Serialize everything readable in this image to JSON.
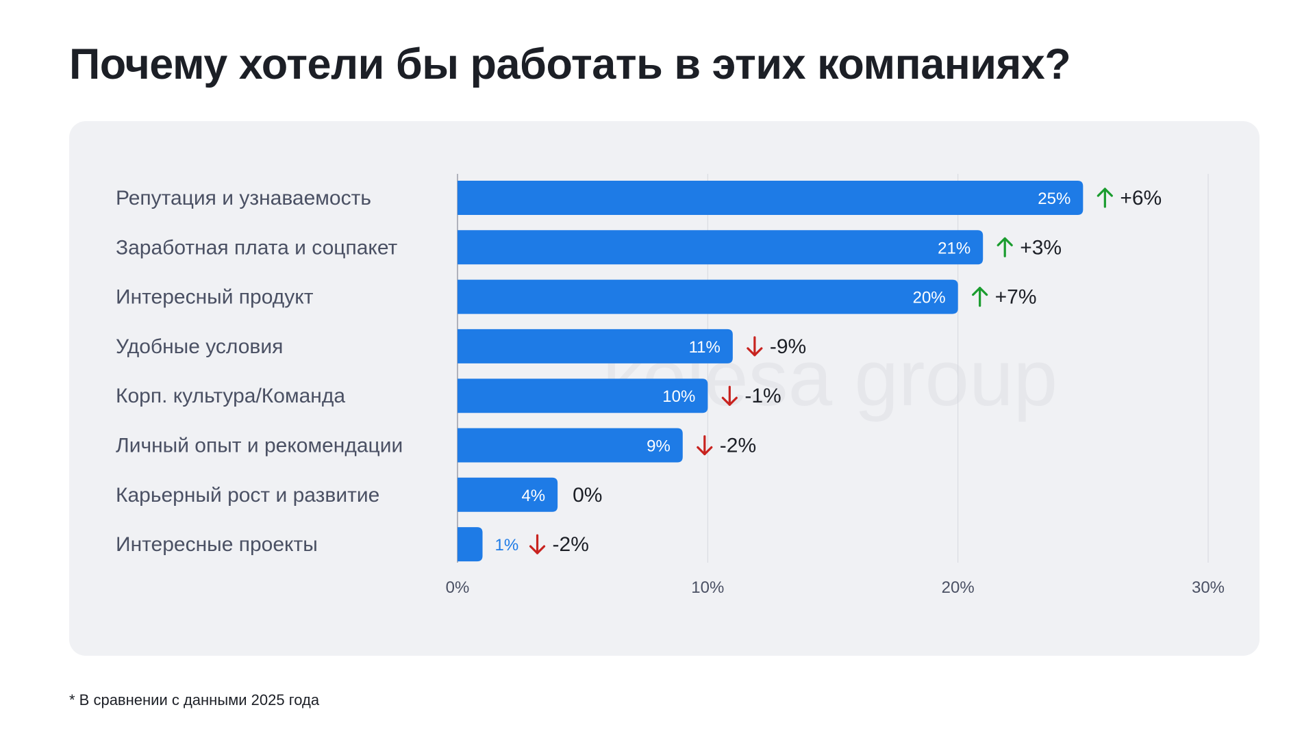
{
  "title": "Почему хотели бы работать в этих компаниях?",
  "footnote": "* В сравнении с данными 2025 года",
  "watermark": "kolesa group",
  "colors": {
    "bar": "#1e7be6",
    "up": "#1a9c2e",
    "down": "#c8231f",
    "label": "#4a5063",
    "grid": "#d6d8de",
    "tick": "#4a5063"
  },
  "chart_data": {
    "type": "bar",
    "orientation": "horizontal",
    "title": "Почему хотели бы работать в этих компаниях?",
    "xlabel": "",
    "ylabel": "",
    "xlim": [
      0,
      30
    ],
    "xticks": [
      0,
      10,
      20,
      30
    ],
    "xtick_labels": [
      "0%",
      "10%",
      "20%",
      "30%"
    ],
    "grid": true,
    "categories": [
      "Репутация и узнаваемость",
      "Заработная плата и соцпакет",
      "Интересный продукт",
      "Удобные условия",
      "Корп. культура/Команда",
      "Личный опыт и рекомендации",
      "Карьерный рост и развитие",
      "Интересные проекты"
    ],
    "values": [
      25,
      21,
      20,
      11,
      10,
      9,
      4,
      1
    ],
    "value_labels": [
      "25%",
      "21%",
      "20%",
      "11%",
      "10%",
      "9%",
      "4%",
      "1%"
    ],
    "changes": [
      {
        "label": "+6%",
        "direction": "up"
      },
      {
        "label": "+3%",
        "direction": "up"
      },
      {
        "label": "+7%",
        "direction": "up"
      },
      {
        "label": "-9%",
        "direction": "down"
      },
      {
        "label": "-1%",
        "direction": "down"
      },
      {
        "label": "-2%",
        "direction": "down"
      },
      {
        "label": "0%",
        "direction": "none"
      },
      {
        "label": "-2%",
        "direction": "down"
      }
    ]
  }
}
